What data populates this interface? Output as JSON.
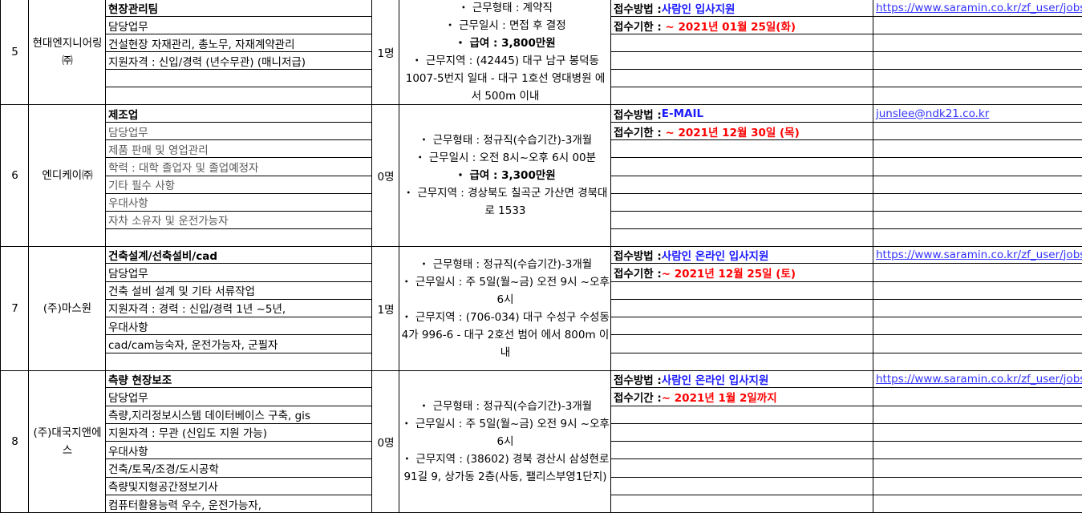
{
  "groups": [
    {
      "num": "5",
      "company": "현대엔지니어링㈜",
      "headcount": "1명",
      "duties_gray": false,
      "duties": [
        "현장관리팀",
        "담당업무",
        "건설현장 자재관리, 총노무, 자재계약관리",
        "지원자격 : 신입/경력 (년수무관) (매니저급)",
        "",
        ""
      ],
      "conditions": [
        "・ 근무형태 : 계약직",
        "・ 근무일시 : 면접 후 결정",
        "・ 급여 : 3,800만원",
        "・ 근무지역 : (42445) 대구 남구 봉덕동 1007-5번지 일대 - 대구 1호선 영대병원 에서 500m 이내"
      ],
      "salary_index": 2,
      "apply_method_label": "접수방법 : ",
      "apply_method": "사람인 입사지원",
      "deadline_label": "접수기한 : ",
      "deadline": " ~ 2021년 01월 25일(화)",
      "link": "https://www.saramin.co.kr/zf_user/jobs"
    },
    {
      "num": "6",
      "company": "엔디케이㈜",
      "headcount": "0명",
      "duties_gray": true,
      "duties": [
        "제조업",
        "담당업무",
        "제품 판매 및 영업관리",
        "학력 : 대학 졸업자 및 졸업예정자",
        "기타 필수 사항",
        "우대사항",
        "자차 소유자 및 운전가능자",
        ""
      ],
      "conditions": [
        "・ 근무형태 : 정규직(수습기간)-3개월",
        "・ 근무일시 : 오전 8시~오후 6시 00분",
        "・ 급여 : 3,300만원",
        "・ 근무지역 : 경상북도 칠곡군 가산면 경북대로 1533"
      ],
      "salary_index": 2,
      "apply_method_label": "접수방법 : ",
      "apply_method": "E-MAIL",
      "deadline_label": "접수기한 : ",
      "deadline": " ~ 2021년 12월 30일 (목)",
      "link": "junslee@ndk21.co.kr"
    },
    {
      "num": "7",
      "company": "(주)마스원",
      "headcount": "1명",
      "duties_gray": false,
      "duties": [
        "건축설계/선축설비/cad",
        "담당업무",
        "건축 설비 설계 및 기타 서류작업",
        "지원자격 : 경력 : 신입/경력 1년 ~5년,",
        "우대사항",
        "cad/cam능숙자, 운전가능자, 군필자",
        ""
      ],
      "conditions": [
        "・ 근무형태 : 정규직(수습기간)-3개월",
        "・ 근무일시 : 주 5일(월~금) 오전 9시 ~오후 6시",
        "・ 근무지역 : (706-034) 대구 수성구 수성동4가 996-6 - 대구 2호선 범어 에서 800m 이내"
      ],
      "salary_index": -1,
      "apply_method_label": "접수방법 : ",
      "apply_method": "사람인 온라인 입사지원",
      "deadline_label": "접수기한 : ",
      "deadline": "~ 2021년 12월 25일 (토)",
      "link": "https://www.saramin.co.kr/zf_user/jobs"
    },
    {
      "num": "8",
      "company": "(주)대국지앤에스",
      "headcount": "0명",
      "duties_gray": false,
      "duties": [
        "측량 현장보조",
        "담당업무",
        "측량,지리정보시스템 데이터베이스 구축, gis",
        "지원자격 : 무관 (신입도 지원 가능)",
        "우대사항",
        "건축/토목/조경/도시공학",
        "측량및지형공간정보기사",
        "컴퓨터활용능력 우수, 운전가능자,"
      ],
      "conditions": [
        "・ 근무형태 : 정규직(수습기간)-3개월",
        "・ 근무일시 : 주 5일(월~금) 오전 9시 ~오후 6시",
        "・ 근무지역 : (38602) 경북 경산시 삼성현로91길 9, 상가동 2층(사동, 팰리스부영1단지)"
      ],
      "salary_index": -1,
      "apply_method_label": "접수방법 : ",
      "apply_method": "사람인 온라인 입사지원",
      "deadline_label": "접수기간 : ",
      "deadline": "~ 2021년 1월 2일까지",
      "link": "https://www.saramin.co.kr/zf_user/jobs"
    }
  ],
  "colors": {
    "method": "#1a1aff",
    "deadline": "#ff0000",
    "link": "#3333ff",
    "gray_text": "#595959"
  }
}
